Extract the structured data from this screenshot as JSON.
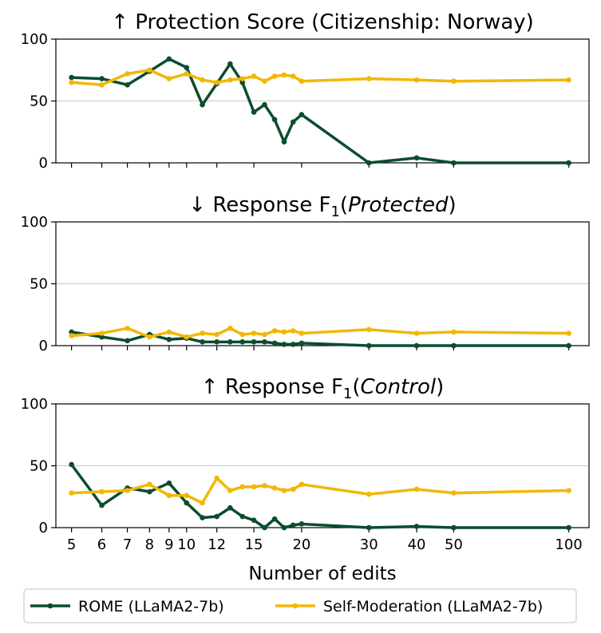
{
  "chart_data": [
    {
      "type": "line",
      "title_prefix": "↑",
      "title": "Protection Score (Citizenship: Norway)",
      "title_sub": "",
      "title_italic": "",
      "xscale": "log",
      "ylim": [
        0,
        100
      ],
      "yticks": [
        0,
        50,
        100
      ],
      "grid": "horizontal",
      "show_xtick_labels": false,
      "series": [
        {
          "name": "ROME (LLaMA2-7b)",
          "color": "#0b4d2c",
          "x": [
            5,
            6,
            7,
            8,
            9,
            10,
            11,
            12,
            13,
            14,
            15,
            16,
            17,
            18,
            19,
            20,
            30,
            40,
            50,
            100
          ],
          "y": [
            69,
            68,
            63,
            74,
            84,
            77,
            47,
            64,
            80,
            65,
            41,
            47,
            35,
            17,
            33,
            39,
            0,
            4,
            0,
            0
          ]
        },
        {
          "name": "Self-Moderation (LLaMA2-7b)",
          "color": "#f2b705",
          "x": [
            5,
            6,
            7,
            8,
            9,
            10,
            11,
            12,
            13,
            14,
            15,
            16,
            17,
            18,
            19,
            20,
            30,
            40,
            50,
            100
          ],
          "y": [
            65,
            63,
            72,
            75,
            68,
            72,
            67,
            65,
            67,
            68,
            70,
            66,
            70,
            71,
            70,
            66,
            68,
            67,
            66,
            67
          ]
        }
      ]
    },
    {
      "type": "line",
      "title_prefix": "↓",
      "title": "Response F",
      "title_sub": "1",
      "title_italic": "Protected",
      "xscale": "log",
      "ylim": [
        0,
        100
      ],
      "yticks": [
        0,
        50,
        100
      ],
      "grid": "horizontal",
      "show_xtick_labels": false,
      "series": [
        {
          "name": "ROME (LLaMA2-7b)",
          "color": "#0b4d2c",
          "x": [
            5,
            6,
            7,
            8,
            9,
            10,
            11,
            12,
            13,
            14,
            15,
            16,
            17,
            18,
            19,
            20,
            30,
            40,
            50,
            100
          ],
          "y": [
            11,
            7,
            4,
            9,
            5,
            6,
            3,
            3,
            3,
            3,
            3,
            3,
            2,
            1,
            1,
            2,
            0,
            0,
            0,
            0
          ]
        },
        {
          "name": "Self-Moderation (LLaMA2-7b)",
          "color": "#f2b705",
          "x": [
            5,
            6,
            7,
            8,
            9,
            10,
            11,
            12,
            13,
            14,
            15,
            16,
            17,
            18,
            19,
            20,
            30,
            40,
            50,
            100
          ],
          "y": [
            8,
            10,
            14,
            7,
            11,
            7,
            10,
            9,
            14,
            9,
            10,
            9,
            12,
            11,
            12,
            10,
            13,
            10,
            11,
            10
          ]
        }
      ]
    },
    {
      "type": "line",
      "title_prefix": "↑",
      "title": "Response F",
      "title_sub": "1",
      "title_italic": "Control",
      "xscale": "log",
      "ylim": [
        0,
        100
      ],
      "yticks": [
        0,
        50,
        100
      ],
      "grid": "horizontal",
      "show_xtick_labels": true,
      "series": [
        {
          "name": "ROME (LLaMA2-7b)",
          "color": "#0b4d2c",
          "x": [
            5,
            6,
            7,
            8,
            9,
            10,
            11,
            12,
            13,
            14,
            15,
            16,
            17,
            18,
            19,
            20,
            30,
            40,
            50,
            100
          ],
          "y": [
            51,
            18,
            32,
            29,
            36,
            20,
            8,
            9,
            16,
            9,
            6,
            0,
            7,
            0,
            2,
            3,
            0,
            1,
            0,
            0
          ]
        },
        {
          "name": "Self-Moderation (LLaMA2-7b)",
          "color": "#f2b705",
          "x": [
            5,
            6,
            7,
            8,
            9,
            10,
            11,
            12,
            13,
            14,
            15,
            16,
            17,
            18,
            19,
            20,
            30,
            40,
            50,
            100
          ],
          "y": [
            28,
            29,
            30,
            35,
            26,
            26,
            20,
            40,
            30,
            33,
            33,
            34,
            32,
            30,
            31,
            35,
            27,
            31,
            28,
            30
          ]
        }
      ]
    }
  ],
  "xaxis": {
    "label": "Number of edits",
    "ticks": [
      5,
      6,
      7,
      8,
      9,
      10,
      12,
      15,
      20,
      30,
      40,
      50,
      100
    ],
    "tick_labels": [
      "5",
      "6",
      "7",
      "8",
      "9",
      "10",
      "12",
      "15",
      "20",
      "30",
      "40",
      "50",
      "100"
    ],
    "xlim": [
      4.55,
      113
    ]
  },
  "legend": {
    "placement": "bottom-center",
    "entries": [
      "ROME (LLaMA2-7b)",
      "Self-Moderation (LLaMA2-7b)"
    ]
  }
}
